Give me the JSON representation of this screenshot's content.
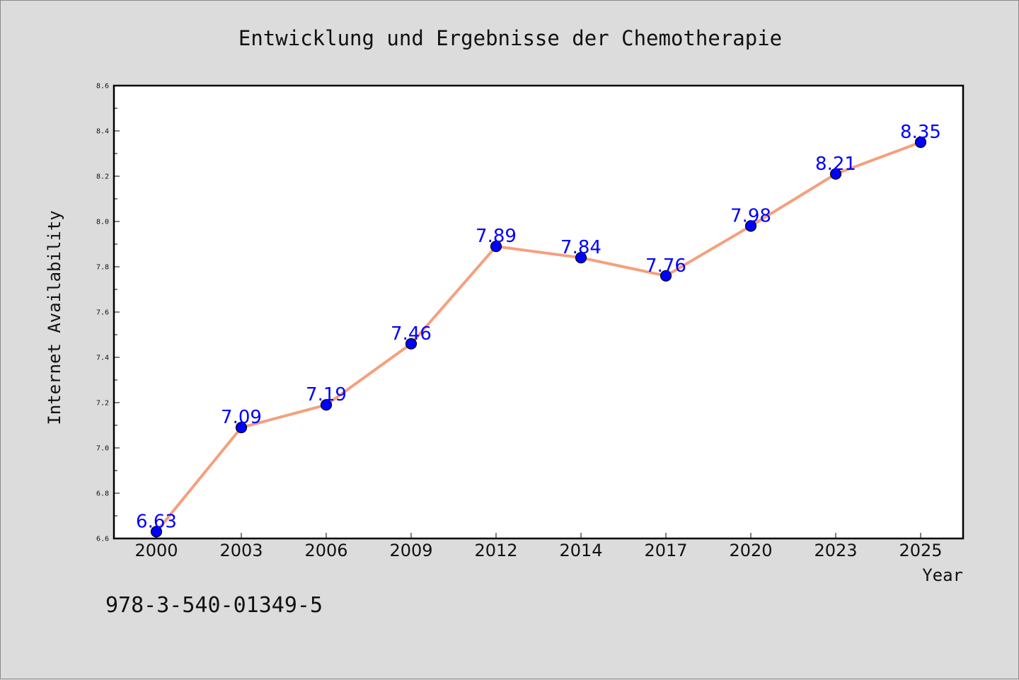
{
  "chart_data": {
    "type": "line",
    "title": "Entwicklung und Ergebnisse der Chemotherapie",
    "xlabel": "Year",
    "ylabel": "Internet Availability",
    "categories": [
      "2000",
      "2003",
      "2006",
      "2009",
      "2012",
      "2014",
      "2017",
      "2020",
      "2023",
      "2025"
    ],
    "series": [
      {
        "values": [
          6.63,
          7.09,
          7.19,
          7.46,
          7.89,
          7.84,
          7.76,
          7.98,
          8.21,
          8.35
        ],
        "line_color": "#f4a07e",
        "marker_color": "#0000ff"
      }
    ],
    "data_labels": [
      "6.63",
      "7.09",
      "7.19",
      "7.46",
      "7.89",
      "7.84",
      "7.76",
      "7.98",
      "8.21",
      "8.35"
    ],
    "ylim": [
      6.6,
      8.6
    ],
    "yticks": [
      "6.6",
      "6.8",
      "7.0",
      "7.2",
      "7.4",
      "7.6",
      "7.8",
      "8.0",
      "8.2",
      "8.4",
      "8.6"
    ],
    "grid": false,
    "legend": "none"
  },
  "footer": {
    "code": "978-3-540-01349-5"
  }
}
